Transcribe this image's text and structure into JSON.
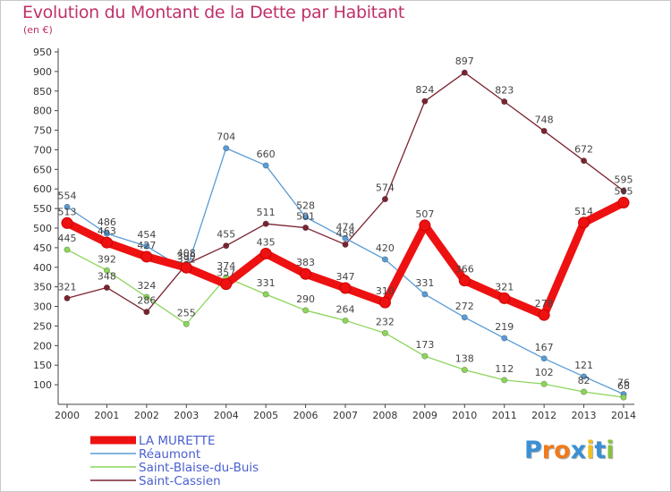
{
  "title": "Evolution du Montant de la Dette par Habitant",
  "subtitle": "(en €)",
  "logo": {
    "letters": [
      "P",
      "r",
      "o",
      "x",
      "i",
      "t",
      "i"
    ],
    "colors": [
      "#3a8fd4",
      "#f07a1a",
      "#f07a1a",
      "#3a8fd4",
      "#f0c020",
      "#3a8fd4",
      "#88c040"
    ]
  },
  "chart_data": {
    "type": "line",
    "x": [
      "2000",
      "2001",
      "2002",
      "2003",
      "2004",
      "2005",
      "2006",
      "2007",
      "2008",
      "2009",
      "2010",
      "2011",
      "2012",
      "2013",
      "2014"
    ],
    "ylim": [
      50,
      950
    ],
    "yticks": [
      100,
      150,
      200,
      250,
      300,
      350,
      400,
      450,
      500,
      550,
      600,
      650,
      700,
      750,
      800,
      850,
      900,
      950
    ],
    "grid": false,
    "legend": "bottom-left",
    "series": [
      {
        "name": "Saint-Cassien",
        "color": "#7a2430",
        "values": [
          321,
          348,
          286,
          408,
          455,
          511,
          501,
          458,
          574,
          824,
          897,
          823,
          748,
          672,
          595
        ]
      },
      {
        "name": "Réaumont",
        "color": "#5a9bd5",
        "values": [
          554,
          486,
          454,
          392,
          704,
          660,
          528,
          474,
          420,
          331,
          272,
          219,
          167,
          121,
          76
        ]
      },
      {
        "name": "Saint-Blaise-du-Buis",
        "color": "#8cd55a",
        "values": [
          445,
          392,
          324,
          255,
          374,
          331,
          290,
          264,
          232,
          173,
          138,
          112,
          102,
          82,
          68
        ]
      },
      {
        "name": "LA MURETTE",
        "color": "#ee1111",
        "values": [
          513,
          463,
          427,
          399,
          357,
          435,
          383,
          347,
          310,
          507,
          366,
          321,
          278,
          514,
          565
        ]
      }
    ],
    "legend_order": [
      "LA MURETTE",
      "Réaumont",
      "Saint-Blaise-du-Buis",
      "Saint-Cassien"
    ]
  }
}
